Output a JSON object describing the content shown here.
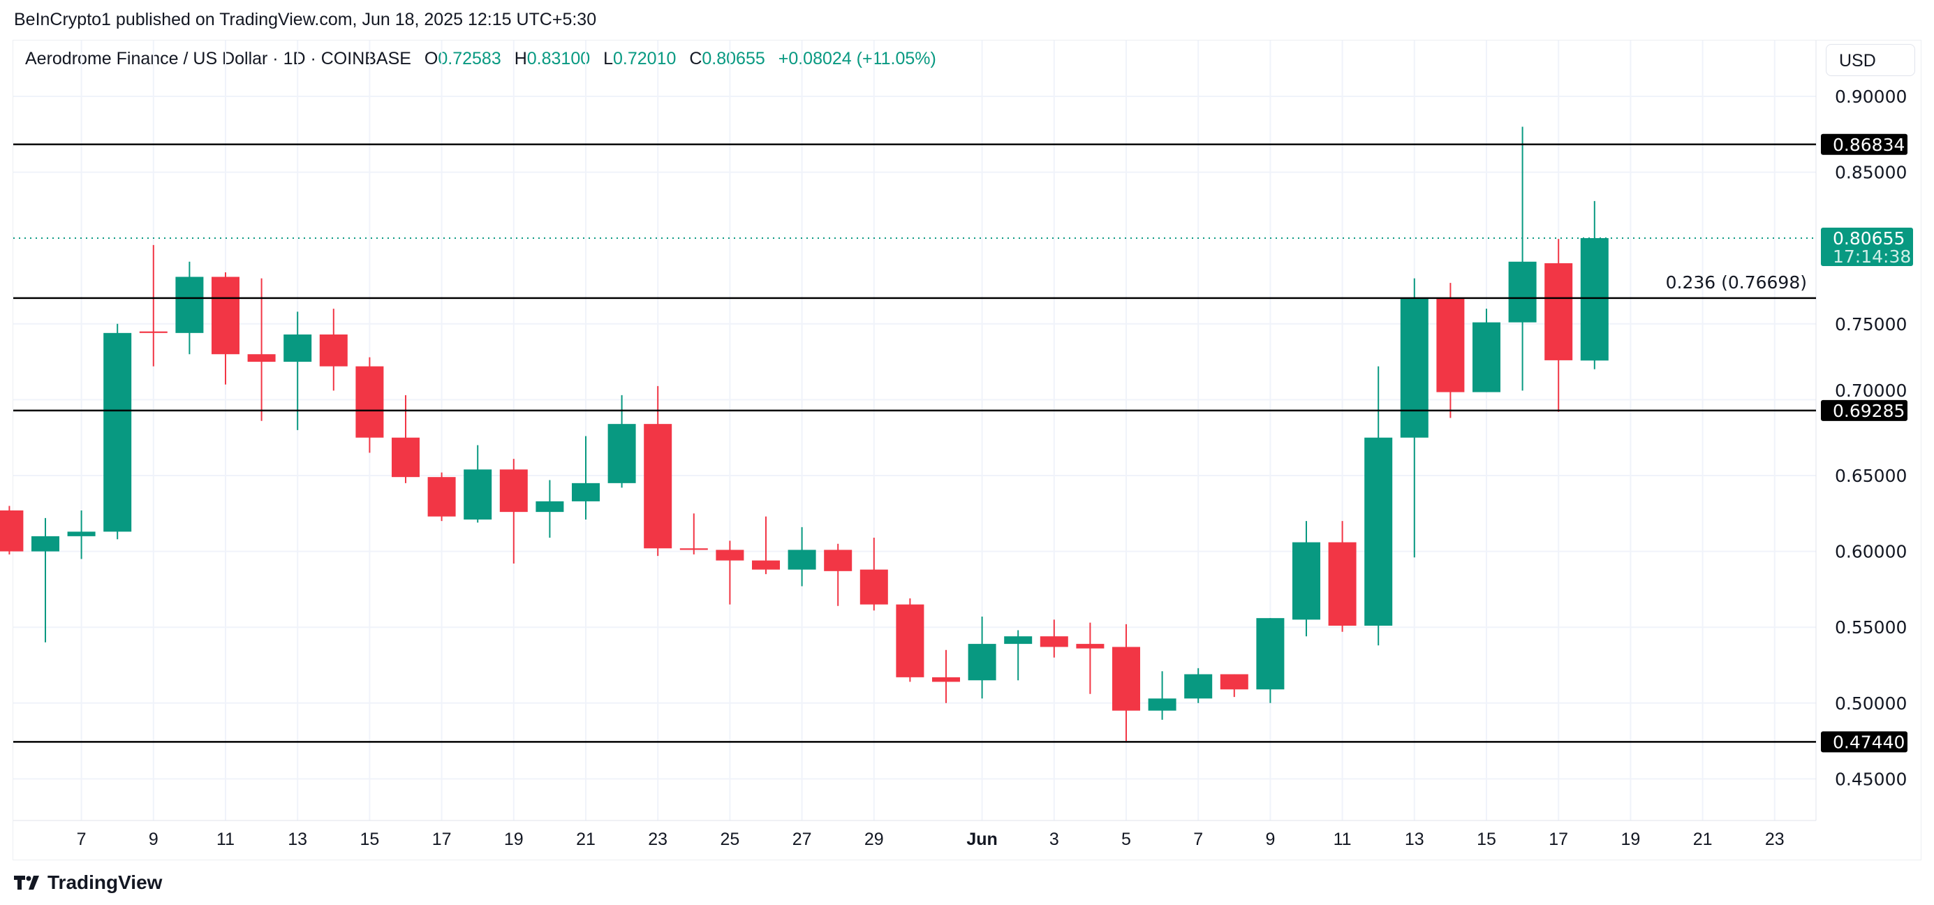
{
  "publisher_line": "BeInCrypto1 published on TradingView.com, Jun 18, 2025 12:15 UTC+5:30",
  "legend": {
    "symbol": "Aerodrome Finance / US Dollar · 1D · COINBASE",
    "o_label": "O",
    "o": "0.72583",
    "h_label": "H",
    "h": "0.83100",
    "l_label": "L",
    "l": "0.72010",
    "c_label": "C",
    "c": "0.80655",
    "change": "+0.08024 (+11.05%)"
  },
  "currency_button": "USD",
  "logo_text": "TradingView",
  "colors": {
    "up": "#089981",
    "down": "#f23645",
    "line": "#000000",
    "grid": "#f0f3fa"
  },
  "chart_data": {
    "type": "candlestick",
    "ylim": [
      0.42,
      0.92
    ],
    "y_ticks": [
      "0.90000",
      "0.85000",
      "0.75000",
      "0.70000",
      "0.65000",
      "0.60000",
      "0.55000",
      "0.50000",
      "0.45000"
    ],
    "x_ticks": [
      {
        "day": 1,
        "label": "7"
      },
      {
        "day": 3,
        "label": "9"
      },
      {
        "day": 5,
        "label": "11"
      },
      {
        "day": 7,
        "label": "13"
      },
      {
        "day": 9,
        "label": "15"
      },
      {
        "day": 11,
        "label": "17"
      },
      {
        "day": 13,
        "label": "19"
      },
      {
        "day": 15,
        "label": "21"
      },
      {
        "day": 17,
        "label": "23"
      },
      {
        "day": 19,
        "label": "25"
      },
      {
        "day": 21,
        "label": "27"
      },
      {
        "day": 23,
        "label": "29"
      },
      {
        "day": 26,
        "label": "Jun",
        "bold": true
      },
      {
        "day": 28,
        "label": "3"
      },
      {
        "day": 30,
        "label": "5"
      },
      {
        "day": 32,
        "label": "7"
      },
      {
        "day": 34,
        "label": "9"
      },
      {
        "day": 36,
        "label": "11"
      },
      {
        "day": 38,
        "label": "13"
      },
      {
        "day": 40,
        "label": "15"
      },
      {
        "day": 42,
        "label": "17"
      },
      {
        "day": 44,
        "label": "19"
      },
      {
        "day": 46,
        "label": "21"
      },
      {
        "day": 48,
        "label": "23"
      }
    ],
    "candles": [
      {
        "date": "May 5",
        "o": 0.627,
        "h": 0.63,
        "l": 0.598,
        "c": 0.6
      },
      {
        "date": "May 6",
        "o": 0.6,
        "h": 0.622,
        "l": 0.54,
        "c": 0.61
      },
      {
        "date": "May 7",
        "o": 0.61,
        "h": 0.627,
        "l": 0.595,
        "c": 0.613
      },
      {
        "date": "May 8",
        "o": 0.613,
        "h": 0.75,
        "l": 0.608,
        "c": 0.744
      },
      {
        "date": "May 9",
        "o": 0.745,
        "h": 0.802,
        "l": 0.722,
        "c": 0.744
      },
      {
        "date": "May 10",
        "o": 0.744,
        "h": 0.791,
        "l": 0.73,
        "c": 0.781
      },
      {
        "date": "May 11",
        "o": 0.781,
        "h": 0.784,
        "l": 0.71,
        "c": 0.73
      },
      {
        "date": "May 12",
        "o": 0.73,
        "h": 0.78,
        "l": 0.686,
        "c": 0.725
      },
      {
        "date": "May 13",
        "o": 0.725,
        "h": 0.758,
        "l": 0.68,
        "c": 0.743
      },
      {
        "date": "May 14",
        "o": 0.743,
        "h": 0.76,
        "l": 0.706,
        "c": 0.722
      },
      {
        "date": "May 15",
        "o": 0.722,
        "h": 0.728,
        "l": 0.665,
        "c": 0.675
      },
      {
        "date": "May 16",
        "o": 0.675,
        "h": 0.703,
        "l": 0.645,
        "c": 0.649
      },
      {
        "date": "May 17",
        "o": 0.649,
        "h": 0.652,
        "l": 0.62,
        "c": 0.623
      },
      {
        "date": "May 18",
        "o": 0.621,
        "h": 0.67,
        "l": 0.619,
        "c": 0.654
      },
      {
        "date": "May 19",
        "o": 0.654,
        "h": 0.661,
        "l": 0.592,
        "c": 0.626
      },
      {
        "date": "May 20",
        "o": 0.626,
        "h": 0.647,
        "l": 0.609,
        "c": 0.633
      },
      {
        "date": "May 21",
        "o": 0.633,
        "h": 0.676,
        "l": 0.621,
        "c": 0.645
      },
      {
        "date": "May 22",
        "o": 0.645,
        "h": 0.703,
        "l": 0.642,
        "c": 0.684
      },
      {
        "date": "May 23",
        "o": 0.684,
        "h": 0.709,
        "l": 0.597,
        "c": 0.602
      },
      {
        "date": "May 24",
        "o": 0.602,
        "h": 0.625,
        "l": 0.598,
        "c": 0.601
      },
      {
        "date": "May 25",
        "o": 0.601,
        "h": 0.607,
        "l": 0.565,
        "c": 0.594
      },
      {
        "date": "May 26",
        "o": 0.594,
        "h": 0.623,
        "l": 0.585,
        "c": 0.588
      },
      {
        "date": "May 27",
        "o": 0.588,
        "h": 0.616,
        "l": 0.577,
        "c": 0.601
      },
      {
        "date": "May 28",
        "o": 0.601,
        "h": 0.605,
        "l": 0.564,
        "c": 0.587
      },
      {
        "date": "May 29",
        "o": 0.588,
        "h": 0.609,
        "l": 0.561,
        "c": 0.565
      },
      {
        "date": "May 30",
        "o": 0.565,
        "h": 0.569,
        "l": 0.514,
        "c": 0.517
      },
      {
        "date": "May 31",
        "o": 0.517,
        "h": 0.535,
        "l": 0.5,
        "c": 0.514
      },
      {
        "date": "Jun 1",
        "o": 0.515,
        "h": 0.557,
        "l": 0.503,
        "c": 0.539
      },
      {
        "date": "Jun 2",
        "o": 0.539,
        "h": 0.548,
        "l": 0.515,
        "c": 0.544
      },
      {
        "date": "Jun 3",
        "o": 0.544,
        "h": 0.555,
        "l": 0.53,
        "c": 0.537
      },
      {
        "date": "Jun 4",
        "o": 0.539,
        "h": 0.553,
        "l": 0.506,
        "c": 0.536
      },
      {
        "date": "Jun 5",
        "o": 0.537,
        "h": 0.552,
        "l": 0.475,
        "c": 0.495
      },
      {
        "date": "Jun 6",
        "o": 0.495,
        "h": 0.521,
        "l": 0.489,
        "c": 0.503
      },
      {
        "date": "Jun 7",
        "o": 0.503,
        "h": 0.523,
        "l": 0.5,
        "c": 0.519
      },
      {
        "date": "Jun 8",
        "o": 0.519,
        "h": 0.519,
        "l": 0.504,
        "c": 0.509
      },
      {
        "date": "Jun 9",
        "o": 0.509,
        "h": 0.556,
        "l": 0.5,
        "c": 0.556
      },
      {
        "date": "Jun 10",
        "o": 0.555,
        "h": 0.62,
        "l": 0.544,
        "c": 0.606
      },
      {
        "date": "Jun 11",
        "o": 0.606,
        "h": 0.62,
        "l": 0.547,
        "c": 0.551
      },
      {
        "date": "Jun 12",
        "o": 0.551,
        "h": 0.722,
        "l": 0.538,
        "c": 0.675
      },
      {
        "date": "Jun 13",
        "o": 0.675,
        "h": 0.78,
        "l": 0.596,
        "c": 0.767
      },
      {
        "date": "Jun 14",
        "o": 0.767,
        "h": 0.777,
        "l": 0.688,
        "c": 0.705
      },
      {
        "date": "Jun 15",
        "o": 0.705,
        "h": 0.76,
        "l": 0.705,
        "c": 0.751
      },
      {
        "date": "Jun 16",
        "o": 0.751,
        "h": 0.88,
        "l": 0.706,
        "c": 0.791
      },
      {
        "date": "Jun 17",
        "o": 0.79,
        "h": 0.806,
        "l": 0.692,
        "c": 0.726
      },
      {
        "date": "Jun 18",
        "o": 0.72583,
        "h": 0.831,
        "l": 0.7201,
        "c": 0.80655
      }
    ],
    "horizontal_levels": [
      {
        "price": 0.86834,
        "label": "0.86834"
      },
      {
        "price": 0.76698,
        "label": "0.236 (0.76698)",
        "axis_label": false
      },
      {
        "price": 0.69285,
        "label": "0.69285"
      },
      {
        "price": 0.4744,
        "label": "0.47440"
      }
    ],
    "last_price": {
      "price": 0.80655,
      "label": "0.80655",
      "countdown": "17:14:38"
    }
  }
}
